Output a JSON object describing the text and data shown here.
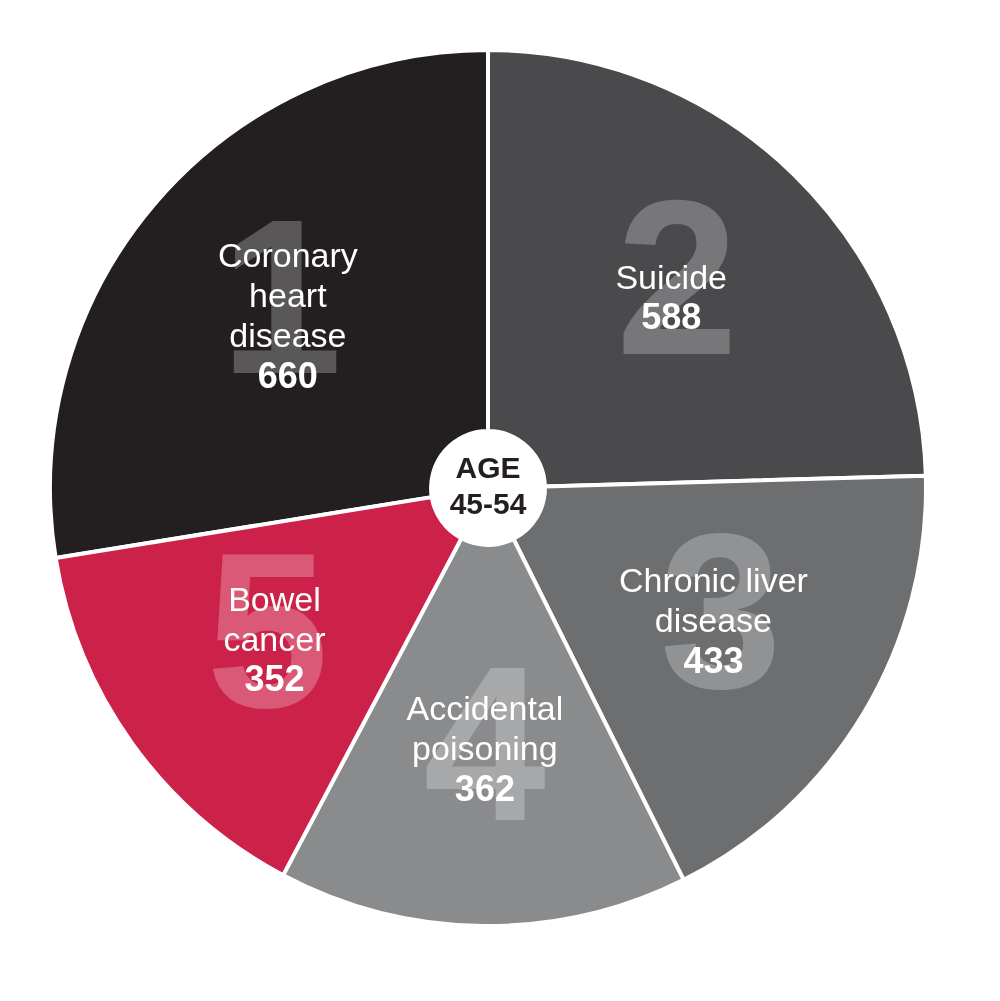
{
  "chart_data": {
    "type": "donut",
    "title": "AGE 45-54",
    "categories": [
      "Coronary heart disease",
      "Suicide",
      "Chronic liver disease",
      "Accidental poisoning",
      "Bowel cancer"
    ],
    "values": [
      660,
      588,
      433,
      362,
      352
    ],
    "colors": [
      "#231f20",
      "#4a4a4c",
      "#6d6e70",
      "#8a8b8d",
      "#cc2249"
    ],
    "data_labels": true,
    "annotations": [
      "1",
      "2",
      "3",
      "4",
      "5"
    ],
    "legend": false
  }
}
